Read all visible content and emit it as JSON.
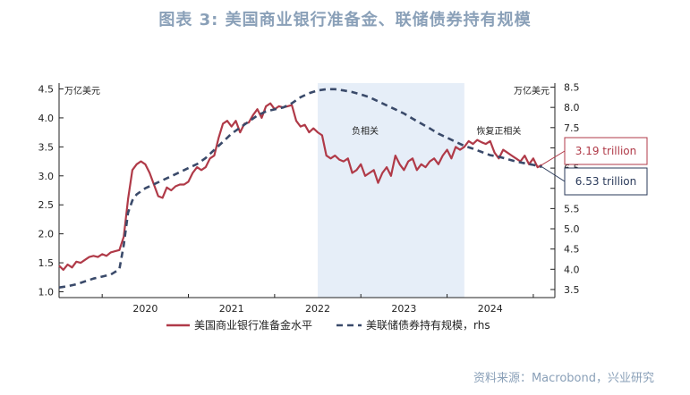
{
  "title": "图表 3:  美国商业银行准备金、联储债券持有规模",
  "source": "资料来源：Macrobond，兴业研究",
  "chart_data": {
    "type": "line",
    "left_unit": "万亿美元",
    "right_unit": "万亿美元",
    "left_ylim": [
      0.9,
      4.6
    ],
    "right_ylim": [
      3.3,
      8.6
    ],
    "left_ticks": [
      "1.0",
      "1.5",
      "2.0",
      "2.5",
      "3.0",
      "3.5",
      "4.0",
      "4.5"
    ],
    "right_ticks": [
      "3.5",
      "4.0",
      "4.5",
      "5.0",
      "5.5",
      "6.0",
      "6.5",
      "7.0",
      "7.5",
      "8.0",
      "8.5"
    ],
    "x_range": [
      2019.0,
      2024.75
    ],
    "x_labels": [
      {
        "x": 2020.0,
        "label": "2020"
      },
      {
        "x": 2021.0,
        "label": "2021"
      },
      {
        "x": 2022.0,
        "label": "2022"
      },
      {
        "x": 2023.0,
        "label": "2023"
      },
      {
        "x": 2024.0,
        "label": "2024"
      }
    ],
    "x_year_bounds": [
      2019.0,
      2019.5,
      2020.5,
      2021.5,
      2022.5,
      2023.5,
      2024.5
    ],
    "shaded_region": [
      2022.0,
      2023.7
    ],
    "annotations": [
      {
        "text": "负相关",
        "x": 2022.55,
        "y_left": 3.72
      },
      {
        "text": "恢复正相关",
        "x": 2024.1,
        "y_left": 3.72
      }
    ],
    "callouts": [
      {
        "text": "3.19 trillion",
        "series": 0,
        "color": "#b03a48"
      },
      {
        "text": "6.53 trillion",
        "series": 1,
        "color": "#2a3a5a"
      }
    ],
    "series": [
      {
        "name": "美国商业银行准备金水平",
        "axis": "left",
        "color": "#b03a48",
        "style": "solid",
        "points": [
          [
            2019.0,
            1.45
          ],
          [
            2019.05,
            1.38
          ],
          [
            2019.1,
            1.47
          ],
          [
            2019.15,
            1.42
          ],
          [
            2019.2,
            1.52
          ],
          [
            2019.25,
            1.5
          ],
          [
            2019.3,
            1.55
          ],
          [
            2019.35,
            1.6
          ],
          [
            2019.4,
            1.62
          ],
          [
            2019.45,
            1.6
          ],
          [
            2019.5,
            1.65
          ],
          [
            2019.55,
            1.62
          ],
          [
            2019.6,
            1.68
          ],
          [
            2019.65,
            1.7
          ],
          [
            2019.7,
            1.72
          ],
          [
            2019.75,
            1.95
          ],
          [
            2019.8,
            2.6
          ],
          [
            2019.85,
            3.1
          ],
          [
            2019.9,
            3.2
          ],
          [
            2019.95,
            3.25
          ],
          [
            2020.0,
            3.2
          ],
          [
            2020.05,
            3.05
          ],
          [
            2020.1,
            2.85
          ],
          [
            2020.15,
            2.65
          ],
          [
            2020.2,
            2.62
          ],
          [
            2020.25,
            2.8
          ],
          [
            2020.3,
            2.75
          ],
          [
            2020.35,
            2.82
          ],
          [
            2020.4,
            2.85
          ],
          [
            2020.45,
            2.85
          ],
          [
            2020.5,
            2.9
          ],
          [
            2020.55,
            3.05
          ],
          [
            2020.6,
            3.15
          ],
          [
            2020.65,
            3.1
          ],
          [
            2020.7,
            3.15
          ],
          [
            2020.75,
            3.3
          ],
          [
            2020.8,
            3.35
          ],
          [
            2020.85,
            3.65
          ],
          [
            2020.9,
            3.9
          ],
          [
            2020.95,
            3.95
          ],
          [
            2021.0,
            3.85
          ],
          [
            2021.05,
            3.95
          ],
          [
            2021.1,
            3.75
          ],
          [
            2021.15,
            3.9
          ],
          [
            2021.2,
            3.92
          ],
          [
            2021.25,
            4.05
          ],
          [
            2021.3,
            4.15
          ],
          [
            2021.35,
            4.0
          ],
          [
            2021.4,
            4.2
          ],
          [
            2021.45,
            4.25
          ],
          [
            2021.5,
            4.15
          ],
          [
            2021.55,
            4.2
          ],
          [
            2021.6,
            4.18
          ],
          [
            2021.65,
            4.2
          ],
          [
            2021.7,
            4.22
          ],
          [
            2021.75,
            3.95
          ],
          [
            2021.8,
            3.85
          ],
          [
            2021.85,
            3.88
          ],
          [
            2021.9,
            3.75
          ],
          [
            2021.95,
            3.82
          ],
          [
            2022.0,
            3.75
          ],
          [
            2022.05,
            3.7
          ],
          [
            2022.1,
            3.35
          ],
          [
            2022.15,
            3.3
          ],
          [
            2022.2,
            3.35
          ],
          [
            2022.25,
            3.28
          ],
          [
            2022.3,
            3.25
          ],
          [
            2022.35,
            3.3
          ],
          [
            2022.4,
            3.05
          ],
          [
            2022.45,
            3.1
          ],
          [
            2022.5,
            3.2
          ],
          [
            2022.55,
            3.0
          ],
          [
            2022.6,
            3.05
          ],
          [
            2022.65,
            3.1
          ],
          [
            2022.7,
            2.88
          ],
          [
            2022.75,
            3.05
          ],
          [
            2022.8,
            3.15
          ],
          [
            2022.85,
            3.0
          ],
          [
            2022.9,
            3.35
          ],
          [
            2022.95,
            3.2
          ],
          [
            2023.0,
            3.1
          ],
          [
            2023.05,
            3.25
          ],
          [
            2023.1,
            3.3
          ],
          [
            2023.15,
            3.1
          ],
          [
            2023.2,
            3.2
          ],
          [
            2023.25,
            3.15
          ],
          [
            2023.3,
            3.25
          ],
          [
            2023.35,
            3.3
          ],
          [
            2023.4,
            3.2
          ],
          [
            2023.45,
            3.35
          ],
          [
            2023.5,
            3.45
          ],
          [
            2023.55,
            3.3
          ],
          [
            2023.6,
            3.5
          ],
          [
            2023.65,
            3.45
          ],
          [
            2023.7,
            3.5
          ],
          [
            2023.75,
            3.6
          ],
          [
            2023.8,
            3.55
          ],
          [
            2023.85,
            3.62
          ],
          [
            2023.9,
            3.58
          ],
          [
            2023.95,
            3.55
          ],
          [
            2024.0,
            3.6
          ],
          [
            2024.05,
            3.4
          ],
          [
            2024.1,
            3.3
          ],
          [
            2024.15,
            3.45
          ],
          [
            2024.2,
            3.4
          ],
          [
            2024.25,
            3.35
          ],
          [
            2024.3,
            3.3
          ],
          [
            2024.35,
            3.25
          ],
          [
            2024.4,
            3.35
          ],
          [
            2024.45,
            3.2
          ],
          [
            2024.5,
            3.3
          ],
          [
            2024.55,
            3.15
          ],
          [
            2024.6,
            3.19
          ]
        ]
      },
      {
        "name": "美联储债券持有规模，rhs",
        "axis": "right",
        "color": "#3a4a6a",
        "style": "dashed",
        "points": [
          [
            2019.0,
            3.55
          ],
          [
            2019.1,
            3.58
          ],
          [
            2019.2,
            3.63
          ],
          [
            2019.3,
            3.7
          ],
          [
            2019.4,
            3.77
          ],
          [
            2019.5,
            3.82
          ],
          [
            2019.6,
            3.87
          ],
          [
            2019.7,
            4.0
          ],
          [
            2019.75,
            4.6
          ],
          [
            2019.8,
            5.4
          ],
          [
            2019.85,
            5.7
          ],
          [
            2019.9,
            5.85
          ],
          [
            2020.0,
            6.0
          ],
          [
            2020.1,
            6.1
          ],
          [
            2020.2,
            6.2
          ],
          [
            2020.3,
            6.3
          ],
          [
            2020.4,
            6.4
          ],
          [
            2020.5,
            6.5
          ],
          [
            2020.6,
            6.6
          ],
          [
            2020.7,
            6.75
          ],
          [
            2020.8,
            6.95
          ],
          [
            2020.9,
            7.15
          ],
          [
            2021.0,
            7.35
          ],
          [
            2021.1,
            7.5
          ],
          [
            2021.2,
            7.65
          ],
          [
            2021.3,
            7.8
          ],
          [
            2021.4,
            7.9
          ],
          [
            2021.5,
            7.95
          ],
          [
            2021.6,
            8.0
          ],
          [
            2021.7,
            8.1
          ],
          [
            2021.8,
            8.25
          ],
          [
            2021.9,
            8.35
          ],
          [
            2022.0,
            8.42
          ],
          [
            2022.1,
            8.45
          ],
          [
            2022.2,
            8.45
          ],
          [
            2022.3,
            8.42
          ],
          [
            2022.4,
            8.38
          ],
          [
            2022.5,
            8.32
          ],
          [
            2022.6,
            8.25
          ],
          [
            2022.7,
            8.15
          ],
          [
            2022.8,
            8.05
          ],
          [
            2022.9,
            7.95
          ],
          [
            2023.0,
            7.85
          ],
          [
            2023.1,
            7.72
          ],
          [
            2023.2,
            7.6
          ],
          [
            2023.3,
            7.48
          ],
          [
            2023.4,
            7.35
          ],
          [
            2023.5,
            7.25
          ],
          [
            2023.6,
            7.15
          ],
          [
            2023.7,
            7.05
          ],
          [
            2023.8,
            6.98
          ],
          [
            2023.9,
            6.9
          ],
          [
            2024.0,
            6.82
          ],
          [
            2024.1,
            6.78
          ],
          [
            2024.2,
            6.72
          ],
          [
            2024.3,
            6.66
          ],
          [
            2024.4,
            6.62
          ],
          [
            2024.5,
            6.58
          ],
          [
            2024.6,
            6.53
          ]
        ]
      }
    ]
  }
}
